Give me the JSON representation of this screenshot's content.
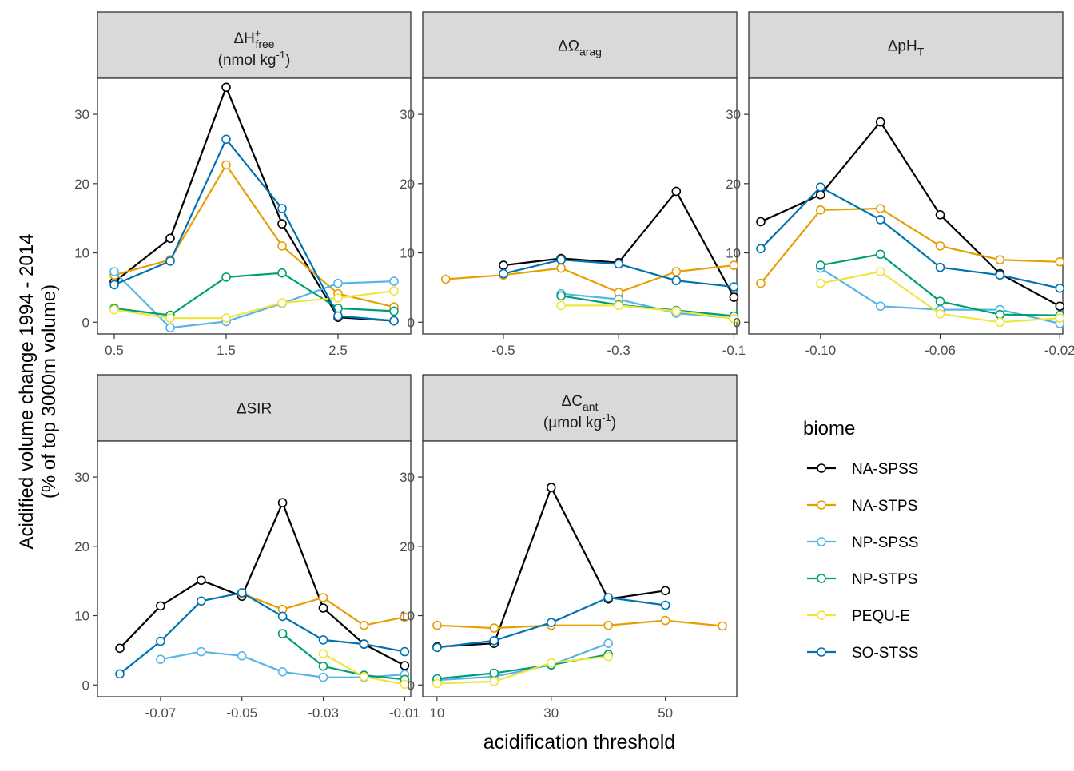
{
  "y_axis_label_line1": "Acidified volume change 1994 - 2014",
  "y_axis_label_line2": "(% of top 3000m volume)",
  "x_axis_label": "acidification threshold",
  "legend": {
    "title": "biome",
    "items": [
      {
        "name": "NA-SPSS",
        "color": "#000000"
      },
      {
        "name": "NA-STPS",
        "color": "#E69F00"
      },
      {
        "name": "NP-SPSS",
        "color": "#56B4E9"
      },
      {
        "name": "NP-STPS",
        "color": "#009E73"
      },
      {
        "name": "PEQU-E",
        "color": "#F0E442"
      },
      {
        "name": "SO-STSS",
        "color": "#0072B2"
      }
    ]
  },
  "chart_data": [
    {
      "type": "line",
      "panel_title": "ΔH+free (nmol kg-1)",
      "title_main": "ΔH",
      "title_sup": "+",
      "title_sub": "free",
      "title_line2_pre": "(nmol kg",
      "title_line2_sup": "-1",
      "title_line2_post": ")",
      "xlim": [
        0.35,
        3.15
      ],
      "ylim": [
        -1.7,
        35.2
      ],
      "xticks": [
        0.5,
        1.5,
        2.5
      ],
      "xticklabels": [
        "0.5",
        "1.5",
        "2.5"
      ],
      "yticks": [
        0,
        10,
        20,
        30
      ],
      "yticklabels": [
        "0",
        "10",
        "20",
        "30"
      ],
      "series": [
        {
          "name": "NA-SPSS",
          "x": [
            0.5,
            1.0,
            1.5,
            2.0,
            2.5,
            3.0
          ],
          "y": [
            5.8,
            12.1,
            33.9,
            14.2,
            0.7,
            0.2
          ]
        },
        {
          "name": "NA-STPS",
          "x": [
            0.5,
            1.0,
            1.5,
            2.0,
            2.5,
            3.0
          ],
          "y": [
            6.8,
            9.0,
            22.7,
            11.0,
            4.1,
            2.2
          ]
        },
        {
          "name": "NP-SPSS",
          "x": [
            0.5,
            1.0,
            1.5,
            2.0,
            2.5,
            3.0
          ],
          "y": [
            7.3,
            -0.8,
            0.1,
            2.7,
            5.6,
            5.9
          ]
        },
        {
          "name": "NP-STPS",
          "x": [
            0.5,
            1.0,
            1.5,
            2.0,
            2.5,
            3.0
          ],
          "y": [
            2.0,
            1.0,
            6.5,
            7.1,
            2.0,
            1.6
          ]
        },
        {
          "name": "PEQU-E",
          "x": [
            0.5,
            1.0,
            1.5,
            2.0,
            2.5,
            3.0
          ],
          "y": [
            1.8,
            0.6,
            0.6,
            2.8,
            3.5,
            4.5
          ]
        },
        {
          "name": "SO-STSS",
          "x": [
            0.5,
            1.0,
            1.5,
            2.0,
            2.5,
            3.0
          ],
          "y": [
            5.4,
            8.8,
            26.4,
            16.4,
            0.9,
            0.2
          ]
        }
      ]
    },
    {
      "type": "line",
      "panel_title": "ΔΩarag",
      "title_main": "ΔΩ",
      "title_sup": "",
      "title_sub": "arag",
      "title_line2_pre": "",
      "title_line2_sup": "",
      "title_line2_post": "",
      "xlim": [
        -0.64,
        -0.095
      ],
      "ylim": [
        -1.7,
        35.2
      ],
      "xticks": [
        -0.5,
        -0.3,
        -0.1
      ],
      "xticklabels": [
        "-0.5",
        "-0.3",
        "-0.1"
      ],
      "yticks": [
        0,
        10,
        20,
        30
      ],
      "yticklabels": [
        "0",
        "10",
        "20",
        "30"
      ],
      "series": [
        {
          "name": "NA-SPSS",
          "x": [
            -0.5,
            -0.4,
            -0.3,
            -0.2,
            -0.1
          ],
          "y": [
            8.2,
            9.2,
            8.6,
            18.9,
            3.6
          ]
        },
        {
          "name": "NA-STPS",
          "x": [
            -0.6,
            -0.5,
            -0.4,
            -0.3,
            -0.2,
            -0.1
          ],
          "y": [
            6.2,
            6.8,
            7.8,
            4.3,
            7.3,
            8.2
          ]
        },
        {
          "name": "NP-SPSS",
          "x": [
            -0.4,
            -0.3,
            -0.2,
            -0.1
          ],
          "y": [
            4.1,
            3.3,
            1.3,
            0.6
          ]
        },
        {
          "name": "NP-STPS",
          "x": [
            -0.4,
            -0.3,
            -0.2,
            -0.1
          ],
          "y": [
            3.8,
            2.5,
            1.7,
            0.9
          ]
        },
        {
          "name": "PEQU-E",
          "x": [
            -0.4,
            -0.3,
            -0.2,
            -0.1
          ],
          "y": [
            2.4,
            2.4,
            1.6,
            0.5
          ]
        },
        {
          "name": "SO-STSS",
          "x": [
            -0.5,
            -0.4,
            -0.3,
            -0.2,
            -0.1
          ],
          "y": [
            7.0,
            9.0,
            8.4,
            6.0,
            5.1
          ]
        }
      ]
    },
    {
      "type": "line",
      "panel_title": "ΔpHT",
      "title_main": "ΔpH",
      "title_sup": "",
      "title_sub": "T",
      "title_line2_pre": "",
      "title_line2_sup": "",
      "title_line2_post": "",
      "xlim": [
        -0.124,
        -0.019
      ],
      "ylim": [
        -1.7,
        35.2
      ],
      "xticks": [
        -0.1,
        -0.06,
        -0.02
      ],
      "xticklabels": [
        "-0.10",
        "-0.06",
        "-0.02"
      ],
      "yticks": [
        0,
        10,
        20,
        30
      ],
      "yticklabels": [
        "0",
        "10",
        "20",
        "30"
      ],
      "series": [
        {
          "name": "NA-SPSS",
          "x": [
            -0.12,
            -0.1,
            -0.08,
            -0.06,
            -0.04,
            -0.02
          ],
          "y": [
            14.5,
            18.4,
            28.9,
            15.5,
            7.0,
            2.3
          ]
        },
        {
          "name": "NA-STPS",
          "x": [
            -0.12,
            -0.1,
            -0.08,
            -0.06,
            -0.04,
            -0.02
          ],
          "y": [
            5.6,
            16.2,
            16.4,
            11.0,
            9.0,
            8.7
          ]
        },
        {
          "name": "NP-SPSS",
          "x": [
            -0.1,
            -0.08,
            -0.06,
            -0.04,
            -0.02
          ],
          "y": [
            7.8,
            2.3,
            1.8,
            1.8,
            -0.2
          ]
        },
        {
          "name": "NP-STPS",
          "x": [
            -0.1,
            -0.08,
            -0.06,
            -0.04,
            -0.02
          ],
          "y": [
            8.2,
            9.8,
            3.0,
            1.1,
            1.0
          ]
        },
        {
          "name": "PEQU-E",
          "x": [
            -0.1,
            -0.08,
            -0.06,
            -0.04,
            -0.02
          ],
          "y": [
            5.6,
            7.3,
            1.2,
            0.0,
            0.6
          ]
        },
        {
          "name": "SO-STSS",
          "x": [
            -0.12,
            -0.1,
            -0.08,
            -0.06,
            -0.04,
            -0.02
          ],
          "y": [
            10.6,
            19.5,
            14.8,
            7.9,
            6.8,
            4.9
          ]
        }
      ]
    },
    {
      "type": "line",
      "panel_title": "ΔSIR",
      "title_main": "ΔSIR",
      "title_sup": "",
      "title_sub": "",
      "title_line2_pre": "",
      "title_line2_sup": "",
      "title_line2_post": "",
      "xlim": [
        -0.0855,
        -0.0085
      ],
      "ylim": [
        -1.7,
        35.2
      ],
      "xticks": [
        -0.07,
        -0.05,
        -0.03,
        -0.01
      ],
      "xticklabels": [
        "-0.07",
        "-0.05",
        "-0.03",
        "-0.01"
      ],
      "yticks": [
        0,
        10,
        20,
        30
      ],
      "yticklabels": [
        "0",
        "10",
        "20",
        "30"
      ],
      "series": [
        {
          "name": "NA-SPSS",
          "x": [
            -0.08,
            -0.07,
            -0.06,
            -0.05,
            -0.04,
            -0.03,
            -0.02,
            -0.01
          ],
          "y": [
            5.3,
            11.4,
            15.1,
            12.8,
            26.3,
            11.1,
            5.9,
            2.8
          ]
        },
        {
          "name": "NA-STPS",
          "x": [
            -0.05,
            -0.04,
            -0.03,
            -0.02,
            -0.01
          ],
          "y": [
            13.2,
            10.9,
            12.6,
            8.6,
            9.8
          ]
        },
        {
          "name": "NP-SPSS",
          "x": [
            -0.07,
            -0.06,
            -0.05,
            -0.04,
            -0.03,
            -0.02,
            -0.01
          ],
          "y": [
            3.7,
            4.8,
            4.2,
            1.9,
            1.1,
            1.1,
            1.5
          ]
        },
        {
          "name": "NP-STPS",
          "x": [
            -0.04,
            -0.03,
            -0.02,
            -0.01
          ],
          "y": [
            7.4,
            2.7,
            1.4,
            0.8
          ]
        },
        {
          "name": "PEQU-E",
          "x": [
            -0.03,
            -0.02,
            -0.01
          ],
          "y": [
            4.5,
            1.2,
            0.1
          ]
        },
        {
          "name": "SO-STSS",
          "x": [
            -0.08,
            -0.07,
            -0.06,
            -0.05,
            -0.04,
            -0.03,
            -0.02,
            -0.01
          ],
          "y": [
            1.6,
            6.3,
            12.1,
            13.3,
            9.9,
            6.5,
            5.9,
            4.8
          ]
        }
      ]
    },
    {
      "type": "line",
      "panel_title": "ΔCant (µmol kg-1)",
      "title_main": "ΔC",
      "title_sup": "",
      "title_sub": "ant",
      "title_line2_pre": "(µmol kg",
      "title_line2_sup": "-1",
      "title_line2_post": ")",
      "xlim": [
        7.5,
        62.5
      ],
      "ylim": [
        -1.7,
        35.2
      ],
      "xticks": [
        10,
        30,
        50
      ],
      "xticklabels": [
        "10",
        "30",
        "50"
      ],
      "yticks": [
        0,
        10,
        20,
        30
      ],
      "yticklabels": [
        "0",
        "10",
        "20",
        "30"
      ],
      "series": [
        {
          "name": "NA-SPSS",
          "x": [
            10,
            20,
            30,
            40,
            50
          ],
          "y": [
            5.5,
            6.0,
            28.5,
            12.4,
            13.6
          ]
        },
        {
          "name": "NA-STPS",
          "x": [
            10,
            20,
            30,
            40,
            50,
            60
          ],
          "y": [
            8.6,
            8.2,
            8.6,
            8.6,
            9.3,
            8.5
          ]
        },
        {
          "name": "NP-SPSS",
          "x": [
            10,
            20,
            30,
            40
          ],
          "y": [
            0.7,
            1.2,
            2.9,
            6.0
          ]
        },
        {
          "name": "NP-STPS",
          "x": [
            10,
            20,
            30,
            40
          ],
          "y": [
            0.9,
            1.7,
            2.9,
            4.4
          ]
        },
        {
          "name": "PEQU-E",
          "x": [
            10,
            20,
            30,
            40
          ],
          "y": [
            0.2,
            0.5,
            3.2,
            4.1
          ]
        },
        {
          "name": "SO-STSS",
          "x": [
            10,
            20,
            30,
            40,
            50
          ],
          "y": [
            5.4,
            6.4,
            9.0,
            12.6,
            11.5
          ]
        }
      ]
    }
  ]
}
